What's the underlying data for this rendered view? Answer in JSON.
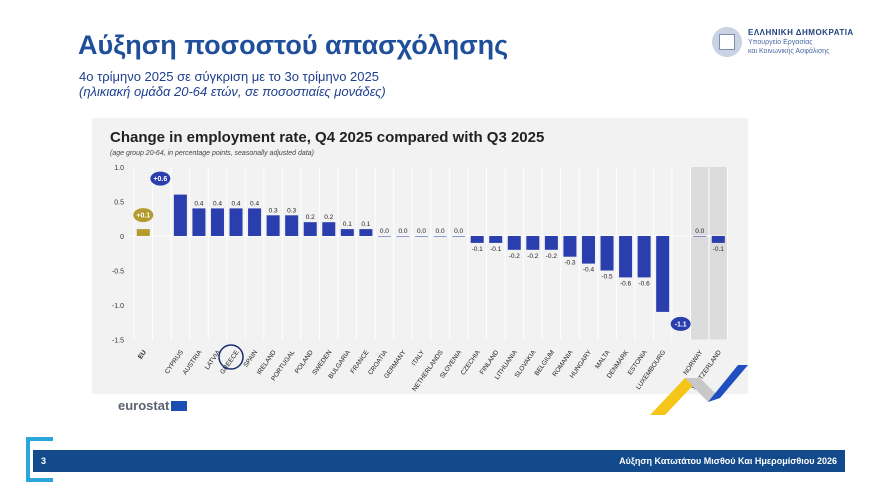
{
  "slide": {
    "title": "Αύξηση ποσοστού απασχόλησης",
    "subtitle": "4ο τρίμηνο 2025 σε σύγκριση με το 3ο τρίμηνο 2025",
    "subtitle2": "(ηλικιακή ομάδα 20-64 ετών, σε ποσοστιαίες μονάδες)",
    "page_number": "3",
    "footer_text": "Αύξηση Κατωτάτου Μισθού Και Ημερομίσθιου 2026"
  },
  "logo": {
    "line1": "ΕΛΛΗΝΙΚΗ ΔΗΜΟΚΡΑΤΙΑ",
    "line2": "Υπουργείο Εργασίας",
    "line3": "και Κοινωνικής Ασφάλισης"
  },
  "source": "eurostat",
  "colors": {
    "title": "#1f4f9b",
    "bar": "#2b3eae",
    "eu_bar": "#b39b2e",
    "footer": "#134a8c"
  },
  "chart_data": {
    "type": "bar",
    "title": "Change in employment rate, Q4 2025 compared with Q3 2025",
    "subtitle": "(age group 20-64, in percentage points, seasonally adjusted data)",
    "ylim": [
      -1.5,
      1.0
    ],
    "yticks": [
      "1.0",
      "0.5",
      "0",
      "-0.5",
      "-1.0",
      "-1.5"
    ],
    "ytick_values": [
      1.0,
      0.5,
      0,
      -0.5,
      -1.0,
      -1.5
    ],
    "grid": "vertical",
    "categories": [
      "EU",
      "CYPRUS",
      "AUSTRIA",
      "LATVIA",
      "GREECE",
      "SPAIN",
      "IRELAND",
      "PORTUGAL",
      "POLAND",
      "SWEDEN",
      "BULGARIA",
      "FRANCE",
      "CROATIA",
      "GERMANY",
      "ITALY",
      "NETHERLANDS",
      "SLOVENIA",
      "CZECHIA",
      "FINLAND",
      "LITHUANIA",
      "SLOVAKIA",
      "BELGIUM",
      "ROMANIA",
      "HUNGARY",
      "MALTA",
      "DENMARK",
      "ESTONIA",
      "LUXEMBOURG",
      "NORWAY",
      "SWITZERLAND"
    ],
    "values": [
      0.1,
      0.6,
      0.4,
      0.4,
      0.4,
      0.4,
      0.3,
      0.3,
      0.2,
      0.2,
      0.1,
      0.1,
      0.0,
      0.0,
      0.0,
      0.0,
      0.0,
      -0.1,
      -0.1,
      -0.2,
      -0.2,
      -0.2,
      -0.3,
      -0.4,
      -0.5,
      -0.6,
      -0.6,
      -1.1,
      0.0,
      -0.1
    ],
    "labels": [
      "+0.1",
      "+0.6",
      "0.4",
      "0.4",
      "0.4",
      "0.4",
      "0.3",
      "0.3",
      "0.2",
      "0.2",
      "0.1",
      "0.1",
      "0.0",
      "0.0",
      "0.0",
      "0.0",
      "0.0",
      "-0.1",
      "-0.1",
      "-0.2",
      "-0.2",
      "-0.2",
      "-0.3",
      "-0.4",
      "-0.5",
      "-0.6",
      "-0.6",
      "-1.1",
      "0.0",
      "-0.1"
    ],
    "highlighted": [
      "EU",
      "CYPRUS",
      "LUXEMBOURG"
    ],
    "circled": "GREECE",
    "shaded": [
      "NORWAY",
      "SWITZERLAND"
    ]
  }
}
